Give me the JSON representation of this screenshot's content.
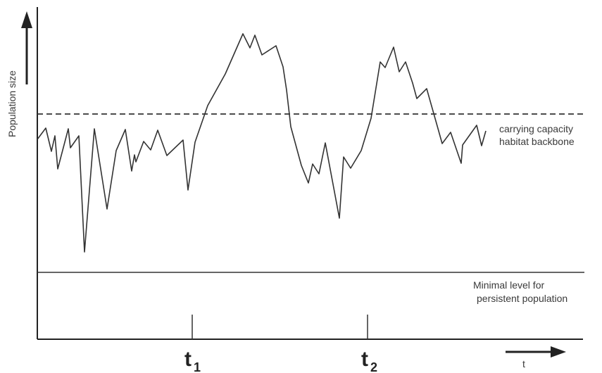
{
  "chart_data": {
    "type": "line",
    "ylabel": "Population size",
    "xlabel": "t",
    "reference_lines": [
      {
        "label_lines": [
          "carrying capacity",
          "habitat backbone"
        ],
        "style": "dashed"
      },
      {
        "label_lines": [
          "Minimal level for",
          "persistent population"
        ],
        "style": "solid"
      }
    ],
    "x_ticks": [
      {
        "main": "t",
        "sub": "1"
      },
      {
        "main": "t",
        "sub": "2"
      }
    ]
  },
  "colors": {
    "line": "#333333",
    "axis": "#222222",
    "text": "#3a3a3a"
  }
}
